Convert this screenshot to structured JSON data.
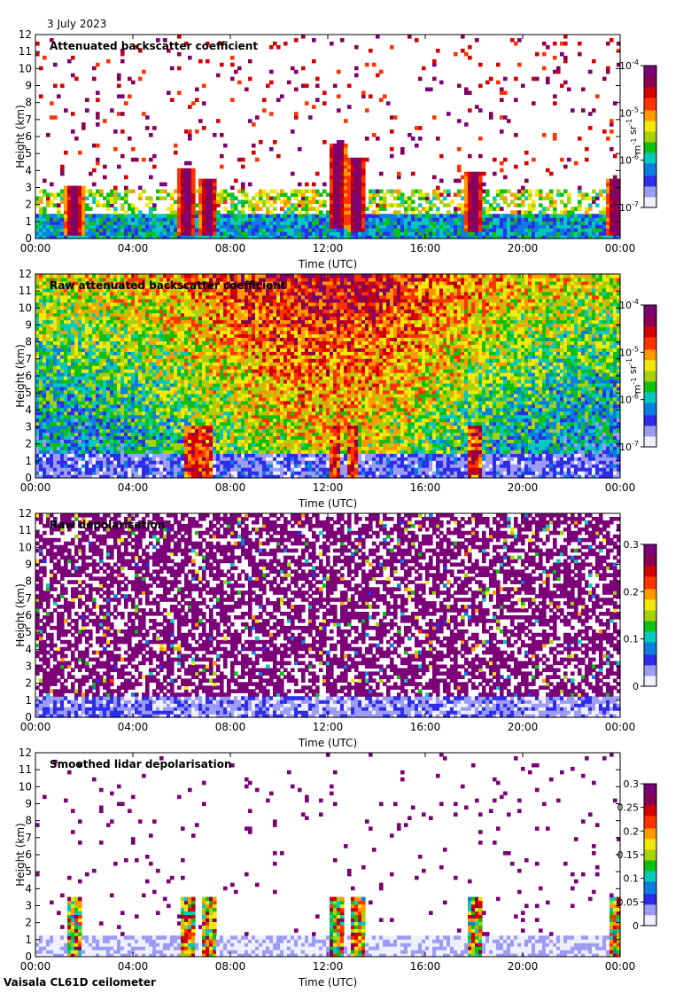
{
  "date": "3 July 2023",
  "footer": "Vaisala CL61D ceilometer",
  "colors": {
    "colormap": [
      "#efefff",
      "#9c9cf5",
      "#2d2dea",
      "#0b7ee0",
      "#07c8bd",
      "#10c010",
      "#a7d10a",
      "#f3e80c",
      "#ff9900",
      "#ff3300",
      "#d40000",
      "#8b004f",
      "#7c0078"
    ],
    "axis": "#000000",
    "background": "#ffffff"
  },
  "chart_data": [
    {
      "type": "heatmap",
      "title": "Attenuated backscatter coefficient",
      "xlabel": "Time (UTC)",
      "ylabel": "Height (km)",
      "x_ticks": [
        "00:00",
        "04:00",
        "08:00",
        "12:00",
        "16:00",
        "20:00",
        "00:00"
      ],
      "x_range_hours": [
        0,
        24
      ],
      "y_ticks": [
        0,
        1,
        2,
        3,
        4,
        5,
        6,
        7,
        8,
        9,
        10,
        11,
        12
      ],
      "ylim": [
        0,
        12
      ],
      "colorbar": {
        "scale": "log",
        "range": [
          1e-07,
          0.0001
        ],
        "ticks": [
          {
            "base": "10",
            "exp": "-4",
            "value": -4
          },
          {
            "base": "10",
            "exp": "-5",
            "value": -5
          },
          {
            "base": "10",
            "exp": "-6",
            "value": -6
          },
          {
            "base": "10",
            "exp": "-7",
            "value": -7
          }
        ],
        "unit_parts": [
          {
            "b": "m",
            "e": "-1"
          },
          {
            "b": " sr",
            "e": "-1"
          }
        ]
      },
      "features": {
        "boundary_layer_top_km": 1.5,
        "cloud_events": [
          {
            "time_h": 1.6,
            "base_km": 0.2,
            "top_km": 3.2
          },
          {
            "time_h": 6.2,
            "base_km": 0.3,
            "top_km": 4.2
          },
          {
            "time_h": 7.1,
            "base_km": 0.3,
            "top_km": 3.6
          },
          {
            "time_h": 12.4,
            "base_km": 0.6,
            "top_km": 5.5
          },
          {
            "time_h": 13.2,
            "base_km": 0.5,
            "top_km": 4.8
          },
          {
            "time_h": 18.0,
            "base_km": 0.4,
            "top_km": 4.0
          },
          {
            "time_h": 23.8,
            "base_km": 0.3,
            "top_km": 3.5
          }
        ]
      }
    },
    {
      "type": "heatmap",
      "title": "Raw attenuated backscatter coefficient",
      "xlabel": "Time (UTC)",
      "ylabel": "Height (km)",
      "x_ticks": [
        "00:00",
        "04:00",
        "08:00",
        "12:00",
        "16:00",
        "20:00",
        "00:00"
      ],
      "x_range_hours": [
        0,
        24
      ],
      "y_ticks": [
        0,
        1,
        2,
        3,
        4,
        5,
        6,
        7,
        8,
        9,
        10,
        11,
        12
      ],
      "ylim": [
        0,
        12
      ],
      "colorbar": {
        "scale": "log",
        "range": [
          1e-07,
          0.0001
        ],
        "ticks": [
          {
            "base": "10",
            "exp": "-4",
            "value": -4
          },
          {
            "base": "10",
            "exp": "-5",
            "value": -5
          },
          {
            "base": "10",
            "exp": "-6",
            "value": -6
          },
          {
            "base": "10",
            "exp": "-7",
            "value": -7
          }
        ],
        "unit_parts": [
          {
            "b": "m",
            "e": "-1"
          },
          {
            "b": " sr",
            "e": "-1"
          }
        ]
      },
      "features": {
        "noise_peak_time_h": 12.0,
        "boundary_layer_top_km": 1.5
      }
    },
    {
      "type": "heatmap",
      "title": "Raw depolarisation",
      "xlabel": "Time (UTC)",
      "ylabel": "Height (km)",
      "x_ticks": [
        "00:00",
        "04:00",
        "08:00",
        "12:00",
        "16:00",
        "20:00",
        "00:00"
      ],
      "x_range_hours": [
        0,
        24
      ],
      "y_ticks": [
        0,
        1,
        2,
        3,
        4,
        5,
        6,
        7,
        8,
        9,
        10,
        11,
        12
      ],
      "ylim": [
        0,
        12
      ],
      "colorbar": {
        "scale": "linear",
        "range": [
          0,
          0.3
        ],
        "ticks": [
          {
            "label": "0.3",
            "value": 0.3
          },
          {
            "label": "0.2",
            "value": 0.2
          },
          {
            "label": "0.1",
            "value": 0.1
          },
          {
            "label": "0",
            "value": 0
          }
        ]
      },
      "features": {
        "noise_dominated_above_km": 1.2
      }
    },
    {
      "type": "heatmap",
      "title": "Smoothed lidar depolarisation",
      "xlabel": "Time (UTC)",
      "ylabel": "Height (km)",
      "x_ticks": [
        "00:00",
        "04:00",
        "08:00",
        "12:00",
        "16:00",
        "20:00",
        "00:00"
      ],
      "x_range_hours": [
        0,
        24
      ],
      "y_ticks": [
        0,
        1,
        2,
        3,
        4,
        5,
        6,
        7,
        8,
        9,
        10,
        11,
        12
      ],
      "ylim": [
        0,
        12
      ],
      "colorbar": {
        "scale": "linear",
        "range": [
          0,
          0.3
        ],
        "ticks": [
          {
            "label": "0.3",
            "value": 0.3
          },
          {
            "label": "0.25",
            "value": 0.25
          },
          {
            "label": "0.2",
            "value": 0.2
          },
          {
            "label": "0.15",
            "value": 0.15
          },
          {
            "label": "0.1",
            "value": 0.1
          },
          {
            "label": "0.05",
            "value": 0.05
          },
          {
            "label": "0",
            "value": 0
          }
        ]
      },
      "features": {
        "boundary_layer_top_km": 1.2
      }
    }
  ]
}
